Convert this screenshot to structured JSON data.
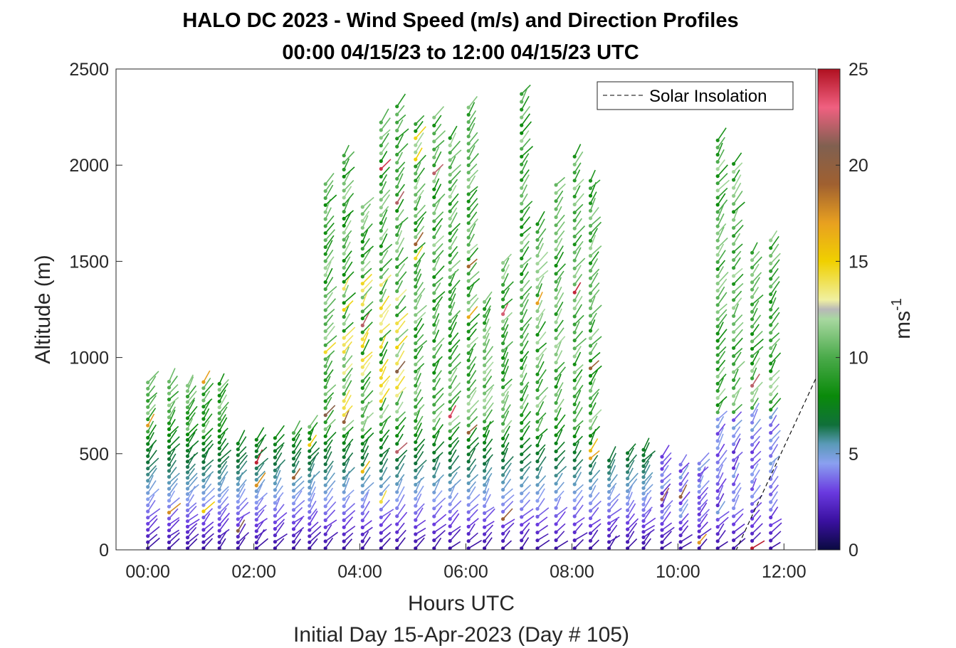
{
  "chart_data": {
    "type": "wind_barb_profile",
    "title": "HALO DC 2023 - Wind Speed (m/s) and Direction Profiles",
    "subtitle": "00:00 04/15/23 to 12:00 04/15/23  UTC",
    "xlabel": "Hours UTC",
    "ylabel": "Altitude (m)",
    "footer": "Initial Day 15-Apr-2023 (Day # 105)",
    "xlim_hours": [
      -0.6,
      12.6
    ],
    "ylim": [
      0,
      2500
    ],
    "x_ticks": [
      {
        "hour": 0,
        "label": "00:00"
      },
      {
        "hour": 2,
        "label": "02:00"
      },
      {
        "hour": 4,
        "label": "04:00"
      },
      {
        "hour": 6,
        "label": "06:00"
      },
      {
        "hour": 8,
        "label": "08:00"
      },
      {
        "hour": 10,
        "label": "10:00"
      },
      {
        "hour": 12,
        "label": "12:00"
      }
    ],
    "y_ticks": [
      {
        "value": 0,
        "label": "0"
      },
      {
        "value": 500,
        "label": "500"
      },
      {
        "value": 1000,
        "label": "1000"
      },
      {
        "value": 1500,
        "label": "1500"
      },
      {
        "value": 2000,
        "label": "2000"
      },
      {
        "value": 2500,
        "label": "2500"
      }
    ],
    "colorbar": {
      "label": "ms",
      "label_superscript": "-1",
      "range": [
        0,
        25
      ],
      "ticks": [
        {
          "value": 0,
          "label": "0"
        },
        {
          "value": 5,
          "label": "5"
        },
        {
          "value": 10,
          "label": "10"
        },
        {
          "value": 15,
          "label": "15"
        },
        {
          "value": 20,
          "label": "20"
        },
        {
          "value": 25,
          "label": "25"
        }
      ],
      "colors": [
        {
          "v": 0,
          "c": "#0a0a40"
        },
        {
          "v": 1.5,
          "c": "#3a10a0"
        },
        {
          "v": 3,
          "c": "#6a3ae0"
        },
        {
          "v": 4.5,
          "c": "#8aa0f0"
        },
        {
          "v": 5.5,
          "c": "#5a9ab8"
        },
        {
          "v": 6.5,
          "c": "#10703a"
        },
        {
          "v": 8,
          "c": "#0a8a0a"
        },
        {
          "v": 10,
          "c": "#4aaa4a"
        },
        {
          "v": 12,
          "c": "#a8d8a0"
        },
        {
          "v": 12.5,
          "c": "#b8b8b8"
        },
        {
          "v": 13,
          "c": "#f0f0a0"
        },
        {
          "v": 15,
          "c": "#f0d000"
        },
        {
          "v": 17,
          "c": "#e8a020"
        },
        {
          "v": 19,
          "c": "#a06030"
        },
        {
          "v": 21,
          "c": "#806050"
        },
        {
          "v": 23,
          "c": "#f06080"
        },
        {
          "v": 25,
          "c": "#b01020"
        }
      ]
    },
    "legend": {
      "entries": [
        {
          "label": "Solar Insolation",
          "style": "dashed"
        }
      ],
      "position": "top-right"
    },
    "profile_times_hours": [
      0,
      0.4,
      0.75,
      1.05,
      1.35,
      1.7,
      2.05,
      2.4,
      2.75,
      3.05,
      3.35,
      3.7,
      4.05,
      4.4,
      4.7,
      5.05,
      5.4,
      5.7,
      6.05,
      6.35,
      6.7,
      7.05,
      7.35,
      7.7,
      8.05,
      8.35,
      8.7,
      9.05,
      9.35,
      9.7,
      10.05,
      10.4,
      10.75,
      11.05,
      11.4,
      11.75
    ],
    "solar_insolation": {
      "x": [
        -0.6,
        11.1,
        12.6
      ],
      "y": [
        0,
        0,
        890
      ]
    }
  }
}
